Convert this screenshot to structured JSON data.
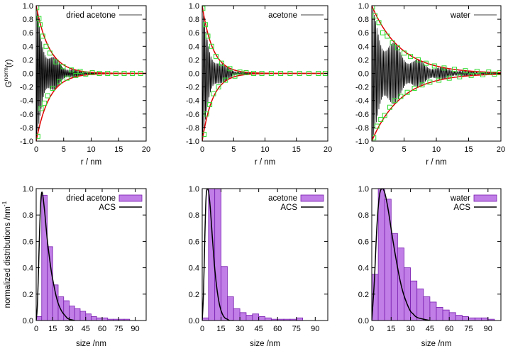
{
  "colors": {
    "fit_curve": "#dd0000",
    "correlation_line": "#000000",
    "marker": "#33dd33",
    "histogram_fill": "#c07ee6",
    "histogram_edge": "#7a1fb0",
    "acs_curve": "#000000"
  },
  "chart_data": [
    {
      "id": "top-left",
      "type": "line",
      "ylabel_main": "G",
      "ylabel_sup": "norm",
      "ylabel_tail": "(r)",
      "xlabel": "r / nm",
      "xlim": [
        0,
        20
      ],
      "ylim": [
        -1.0,
        1.0
      ],
      "xticks": [
        0,
        5,
        10,
        15,
        20
      ],
      "xtick_labels": [
        "0",
        "5",
        "10",
        "15",
        "20"
      ],
      "yticks": [
        -1.0,
        -0.8,
        -0.6,
        -0.4,
        -0.2,
        0.0,
        0.2,
        0.4,
        0.6,
        0.8,
        1.0
      ],
      "ytick_labels": [
        "-1.0",
        "-0.8",
        "-0.6",
        "-0.4",
        "-0.2",
        "0.0",
        "0.2",
        "0.4",
        "0.6",
        "0.8",
        "1.0"
      ],
      "grid": false,
      "legend": {
        "position": "top-right",
        "entries": [
          {
            "label": "dried acetone",
            "series": "correlation"
          }
        ]
      },
      "envelope_decay_nm": 2.4,
      "oscillation_period_nm": 0.2,
      "envelope_points": [
        {
          "x": 0.0,
          "y": 1.0
        },
        {
          "x": 1.0,
          "y": 0.66
        },
        {
          "x": 2.0,
          "y": 0.44
        },
        {
          "x": 3.0,
          "y": 0.29
        },
        {
          "x": 5.0,
          "y": 0.12
        },
        {
          "x": 8.0,
          "y": 0.04
        },
        {
          "x": 12.0,
          "y": 0.01
        },
        {
          "x": 20.0,
          "y": 0.0
        }
      ],
      "marker_points": [
        {
          "x": 0.1,
          "y": 0.97
        },
        {
          "x": 0.3,
          "y": -0.93
        },
        {
          "x": 0.5,
          "y": 0.81
        },
        {
          "x": 0.7,
          "y": 0.72
        },
        {
          "x": 0.9,
          "y": -0.52
        },
        {
          "x": 1.2,
          "y": 0.55
        },
        {
          "x": 1.5,
          "y": -0.44
        },
        {
          "x": 1.8,
          "y": 0.4
        },
        {
          "x": 2.1,
          "y": -0.33
        },
        {
          "x": 2.5,
          "y": 0.3
        },
        {
          "x": 3.0,
          "y": -0.22
        },
        {
          "x": 3.6,
          "y": 0.17
        },
        {
          "x": 4.2,
          "y": -0.12
        },
        {
          "x": 4.9,
          "y": 0.1
        },
        {
          "x": 5.6,
          "y": -0.07
        },
        {
          "x": 6.4,
          "y": 0.05
        },
        {
          "x": 7.2,
          "y": -0.03
        },
        {
          "x": 8.0,
          "y": 0.03
        },
        {
          "x": 9.0,
          "y": -0.01
        },
        {
          "x": 10.2,
          "y": 0.01
        },
        {
          "x": 11.5,
          "y": 0.0
        },
        {
          "x": 13.0,
          "y": 0.0
        },
        {
          "x": 14.5,
          "y": 0.0
        },
        {
          "x": 16.0,
          "y": 0.0
        },
        {
          "x": 17.5,
          "y": 0.0
        },
        {
          "x": 19.0,
          "y": 0.0
        }
      ]
    },
    {
      "id": "top-middle",
      "type": "line",
      "xlabel": "r / nm",
      "xlim": [
        0,
        20
      ],
      "ylim": [
        -1.0,
        1.0
      ],
      "xticks": [
        0,
        5,
        10,
        15,
        20
      ],
      "xtick_labels": [
        "0",
        "5",
        "10",
        "15",
        "20"
      ],
      "yticks": [
        -1.0,
        -0.8,
        -0.6,
        -0.4,
        -0.2,
        0.0,
        0.2,
        0.4,
        0.6,
        0.8,
        1.0
      ],
      "ytick_labels": [
        "-1.0",
        "-0.8",
        "-0.6",
        "-0.4",
        "-0.2",
        "0.0",
        "0.2",
        "0.4",
        "0.6",
        "0.8",
        "1.0"
      ],
      "grid": false,
      "legend": {
        "position": "top-right",
        "entries": [
          {
            "label": "acetone",
            "series": "correlation"
          }
        ]
      },
      "envelope_decay_nm": 1.7,
      "oscillation_period_nm": 0.2,
      "envelope_points": [
        {
          "x": 0.0,
          "y": 1.0
        },
        {
          "x": 1.0,
          "y": 0.55
        },
        {
          "x": 2.0,
          "y": 0.31
        },
        {
          "x": 3.0,
          "y": 0.17
        },
        {
          "x": 5.0,
          "y": 0.05
        },
        {
          "x": 8.0,
          "y": 0.01
        },
        {
          "x": 20.0,
          "y": 0.0
        }
      ],
      "marker_points": [
        {
          "x": 0.1,
          "y": 0.96
        },
        {
          "x": 0.3,
          "y": -0.9
        },
        {
          "x": 0.5,
          "y": 0.72
        },
        {
          "x": 0.7,
          "y": -0.6
        },
        {
          "x": 0.9,
          "y": 0.55
        },
        {
          "x": 1.2,
          "y": -0.46
        },
        {
          "x": 1.5,
          "y": 0.4
        },
        {
          "x": 1.8,
          "y": -0.3
        },
        {
          "x": 2.2,
          "y": 0.25
        },
        {
          "x": 2.6,
          "y": -0.2
        },
        {
          "x": 3.1,
          "y": 0.15
        },
        {
          "x": 3.7,
          "y": -0.1
        },
        {
          "x": 4.4,
          "y": 0.07
        },
        {
          "x": 5.2,
          "y": -0.04
        },
        {
          "x": 6.0,
          "y": 0.02
        },
        {
          "x": 7.0,
          "y": 0.01
        },
        {
          "x": 8.2,
          "y": 0.0
        },
        {
          "x": 9.5,
          "y": 0.0
        },
        {
          "x": 11.0,
          "y": 0.0
        },
        {
          "x": 12.5,
          "y": 0.0
        },
        {
          "x": 14.0,
          "y": 0.0
        },
        {
          "x": 15.5,
          "y": 0.0
        },
        {
          "x": 17.0,
          "y": 0.0
        },
        {
          "x": 18.5,
          "y": 0.0
        },
        {
          "x": 19.6,
          "y": 0.0
        }
      ]
    },
    {
      "id": "top-right",
      "type": "line",
      "xlabel": "r / nm",
      "xlim": [
        0,
        20
      ],
      "ylim": [
        -1.0,
        1.0
      ],
      "xticks": [
        0,
        5,
        10,
        15,
        20
      ],
      "xtick_labels": [
        "0",
        "5",
        "10",
        "15",
        "20"
      ],
      "yticks": [
        -1.0,
        -0.8,
        -0.6,
        -0.4,
        -0.2,
        0.0,
        0.2,
        0.4,
        0.6,
        0.8,
        1.0
      ],
      "ytick_labels": [
        "-1.0",
        "-0.8",
        "-0.6",
        "-0.4",
        "-0.2",
        "0.0",
        "0.2",
        "0.4",
        "0.6",
        "0.8",
        "1.0"
      ],
      "grid": false,
      "legend": {
        "position": "top-right",
        "entries": [
          {
            "label": "water",
            "series": "correlation"
          }
        ]
      },
      "envelope_decay_nm": 4.5,
      "oscillation_period_nm": 0.2,
      "envelope_points": [
        {
          "x": 0.0,
          "y": 1.0
        },
        {
          "x": 2.0,
          "y": 0.64
        },
        {
          "x": 4.0,
          "y": 0.41
        },
        {
          "x": 6.0,
          "y": 0.26
        },
        {
          "x": 8.0,
          "y": 0.17
        },
        {
          "x": 10.0,
          "y": 0.11
        },
        {
          "x": 15.0,
          "y": 0.04
        },
        {
          "x": 20.0,
          "y": 0.01
        }
      ],
      "marker_points": [
        {
          "x": 0.1,
          "y": 0.98
        },
        {
          "x": 0.3,
          "y": -0.95
        },
        {
          "x": 0.5,
          "y": 0.85
        },
        {
          "x": 0.8,
          "y": -0.78
        },
        {
          "x": 1.1,
          "y": 0.75
        },
        {
          "x": 1.4,
          "y": -0.68
        },
        {
          "x": 1.7,
          "y": 0.6
        },
        {
          "x": 2.0,
          "y": -0.62
        },
        {
          "x": 2.4,
          "y": 0.55
        },
        {
          "x": 2.8,
          "y": -0.5
        },
        {
          "x": 3.2,
          "y": 0.45
        },
        {
          "x": 3.6,
          "y": -0.4
        },
        {
          "x": 4.0,
          "y": 0.38
        },
        {
          "x": 4.5,
          "y": -0.34
        },
        {
          "x": 5.0,
          "y": 0.3
        },
        {
          "x": 5.5,
          "y": -0.28
        },
        {
          "x": 6.0,
          "y": 0.25
        },
        {
          "x": 6.6,
          "y": -0.22
        },
        {
          "x": 7.2,
          "y": 0.2
        },
        {
          "x": 7.8,
          "y": -0.17
        },
        {
          "x": 8.4,
          "y": 0.15
        },
        {
          "x": 9.0,
          "y": -0.13
        },
        {
          "x": 9.7,
          "y": 0.11
        },
        {
          "x": 10.4,
          "y": -0.1
        },
        {
          "x": 11.2,
          "y": 0.08
        },
        {
          "x": 12.0,
          "y": -0.07
        },
        {
          "x": 12.8,
          "y": 0.06
        },
        {
          "x": 13.6,
          "y": -0.05
        },
        {
          "x": 14.5,
          "y": 0.04
        },
        {
          "x": 15.4,
          "y": -0.03
        },
        {
          "x": 16.3,
          "y": 0.03
        },
        {
          "x": 17.2,
          "y": -0.02
        },
        {
          "x": 18.1,
          "y": 0.02
        },
        {
          "x": 19.0,
          "y": -0.01
        },
        {
          "x": 19.8,
          "y": 0.01
        }
      ]
    },
    {
      "id": "bottom-left",
      "type": "bar",
      "ylabel_main": "normalized distributions /nm",
      "ylabel_sup": "-1",
      "xlabel": "size /nm",
      "xlim": [
        0,
        100
      ],
      "ylim": [
        0,
        1.0
      ],
      "xticks": [
        0,
        15,
        30,
        45,
        60,
        75,
        90
      ],
      "xtick_labels": [
        "0",
        "15",
        "30",
        "45",
        "60",
        "75",
        "90"
      ],
      "yticks": [
        0.0,
        0.2,
        0.4,
        0.6,
        0.8,
        1.0
      ],
      "ytick_labels": [
        "0.0",
        "0.2",
        "0.4",
        "0.6",
        "0.8",
        "1.0"
      ],
      "grid": false,
      "legend": {
        "position": "top-right",
        "entries": [
          {
            "label": "dried acetone",
            "series": "histogram"
          },
          {
            "label": "ACS",
            "series": "curve"
          }
        ]
      },
      "bin_width": 5,
      "bins_start": 0,
      "histogram": [
        0.03,
        0.95,
        0.56,
        0.27,
        0.18,
        0.15,
        0.11,
        0.09,
        0.07,
        0.05,
        0.03,
        0.02,
        0.02,
        0.01,
        0.01,
        0.01,
        0.01,
        0.0,
        0.0,
        0.0
      ],
      "acs_curve": {
        "x": [
          0,
          1,
          2,
          3,
          4,
          5,
          6,
          7,
          8,
          10,
          12,
          14,
          16,
          18,
          20,
          22,
          24,
          26,
          28,
          30,
          35
        ],
        "y": [
          0.0,
          0.1,
          0.35,
          0.65,
          0.88,
          0.97,
          0.95,
          0.88,
          0.8,
          0.62,
          0.48,
          0.36,
          0.27,
          0.19,
          0.13,
          0.09,
          0.06,
          0.04,
          0.02,
          0.01,
          0.0
        ]
      }
    },
    {
      "id": "bottom-middle",
      "type": "bar",
      "xlabel": "size /nm",
      "xlim": [
        0,
        100
      ],
      "ylim": [
        0,
        1.0
      ],
      "xticks": [
        0,
        15,
        30,
        45,
        60,
        75,
        90
      ],
      "xtick_labels": [
        "0",
        "15",
        "30",
        "45",
        "60",
        "75",
        "90"
      ],
      "yticks": [
        0.0,
        0.2,
        0.4,
        0.6,
        0.8,
        1.0
      ],
      "ytick_labels": [
        "0.0",
        "0.2",
        "0.4",
        "0.6",
        "0.8",
        "1.0"
      ],
      "grid": false,
      "legend": {
        "position": "top-right",
        "entries": [
          {
            "label": "acetone",
            "series": "histogram"
          },
          {
            "label": "ACS",
            "series": "curve"
          }
        ]
      },
      "bin_width": 5,
      "bins_start": 0,
      "histogram": [
        0.02,
        1.0,
        1.0,
        0.41,
        0.18,
        0.09,
        0.06,
        0.04,
        0.05,
        0.03,
        0.02,
        0.01,
        0.01,
        0.01,
        0.01,
        0.02,
        0.0,
        0.0,
        0.0,
        0.0
      ],
      "acs_curve": {
        "x": [
          0,
          1,
          2,
          3,
          4,
          5,
          6,
          7,
          8,
          9,
          10,
          12,
          14,
          16,
          18,
          20,
          22,
          25
        ],
        "y": [
          0.0,
          0.2,
          0.6,
          0.92,
          1.0,
          0.98,
          0.9,
          0.78,
          0.64,
          0.51,
          0.39,
          0.22,
          0.11,
          0.05,
          0.02,
          0.01,
          0.0,
          0.0
        ]
      }
    },
    {
      "id": "bottom-right",
      "type": "bar",
      "xlabel": "size /nm",
      "xlim": [
        0,
        100
      ],
      "ylim": [
        0,
        1.0
      ],
      "xticks": [
        0,
        15,
        30,
        45,
        60,
        75,
        90
      ],
      "xtick_labels": [
        "0",
        "15",
        "30",
        "45",
        "60",
        "75",
        "90"
      ],
      "yticks": [
        0.0,
        0.2,
        0.4,
        0.6,
        0.8,
        1.0
      ],
      "ytick_labels": [
        "0.0",
        "0.2",
        "0.4",
        "0.6",
        "0.8",
        "1.0"
      ],
      "grid": false,
      "legend": {
        "position": "top-right",
        "entries": [
          {
            "label": "water",
            "series": "histogram"
          },
          {
            "label": "ACS",
            "series": "curve"
          }
        ]
      },
      "bin_width": 5,
      "bins_start": 0,
      "histogram": [
        0.35,
        1.0,
        0.92,
        0.66,
        0.55,
        0.4,
        0.3,
        0.24,
        0.18,
        0.14,
        0.1,
        0.08,
        0.06,
        0.04,
        0.03,
        0.02,
        0.02,
        0.02,
        0.01,
        0.0
      ],
      "acs_curve": {
        "x": [
          0,
          2,
          4,
          6,
          8,
          10,
          12,
          14,
          16,
          18,
          20,
          22,
          24,
          26,
          28,
          30,
          32,
          34,
          36,
          40,
          45
        ],
        "y": [
          0.0,
          0.3,
          0.72,
          0.95,
          1.0,
          0.97,
          0.88,
          0.76,
          0.63,
          0.51,
          0.4,
          0.3,
          0.22,
          0.16,
          0.11,
          0.07,
          0.05,
          0.03,
          0.02,
          0.01,
          0.0
        ]
      }
    }
  ]
}
